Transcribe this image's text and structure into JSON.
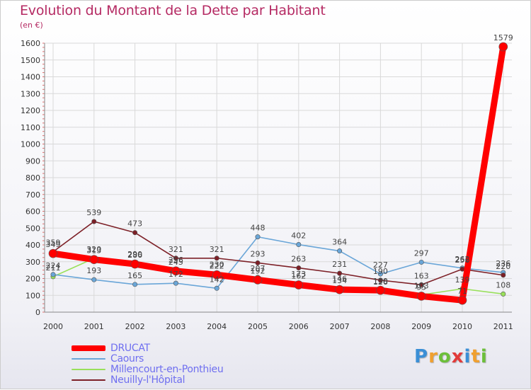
{
  "title": "Evolution du Montant de la Dette par Habitant",
  "unit": "(en €)",
  "logo": {
    "text": "Proxiti",
    "letters": [
      {
        "ch": "P",
        "color": "#3b8fd6"
      },
      {
        "ch": "r",
        "color": "#f0a030"
      },
      {
        "ch": "o",
        "color": "#6cbf3a"
      },
      {
        "ch": "x",
        "color": "#e23a3a"
      },
      {
        "ch": "i",
        "color": "#3b8fd6"
      },
      {
        "ch": "t",
        "color": "#f0a030"
      },
      {
        "ch": "i",
        "color": "#6cbf3a"
      }
    ]
  },
  "chart_data": {
    "type": "line",
    "title": "Evolution du Montant de la Dette par Habitant",
    "ylabel": "(en €)",
    "xlabel": "",
    "x": [
      2000,
      2001,
      2002,
      2003,
      2004,
      2005,
      2006,
      2007,
      2008,
      2009,
      2010,
      2011
    ],
    "ylim": [
      0,
      1600
    ],
    "yticks": [
      0,
      100,
      200,
      300,
      400,
      500,
      600,
      700,
      800,
      900,
      1000,
      1100,
      1200,
      1300,
      1400,
      1500,
      1600
    ],
    "grid": true,
    "legend": "bottom-left",
    "series": [
      {
        "name": "Millencourt-en-Ponthieu",
        "color": "#99e05a",
        "values": [
          211,
          320,
          290,
          256,
          230,
          207,
          173,
          146,
          126,
          103,
          139,
          108
        ]
      },
      {
        "name": "Caours",
        "color": "#6aa6d8",
        "values": [
          224,
          193,
          165,
          172,
          142,
          448,
          402,
          364,
          227,
          297,
          262,
          236
        ]
      },
      {
        "name": "Neuilly-l'Hôpital",
        "color": "#7d2027",
        "values": [
          359,
          539,
          473,
          321,
          321,
          293,
          263,
          231,
          190,
          163,
          256,
          220
        ]
      },
      {
        "name": "DRUCAT",
        "color": "#ff0000",
        "values": [
          349,
          313,
          286,
          245,
          222,
          192,
          162,
          134,
          130,
          95,
          71,
          1579
        ]
      }
    ]
  }
}
